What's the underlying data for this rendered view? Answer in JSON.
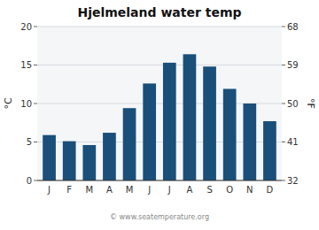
{
  "chart_data": {
    "type": "bar",
    "title": "Hjelmeland water temp",
    "categories": [
      "J",
      "F",
      "M",
      "A",
      "M",
      "J",
      "J",
      "A",
      "S",
      "O",
      "N",
      "D"
    ],
    "values": [
      5.9,
      5.1,
      4.6,
      6.2,
      9.4,
      12.6,
      15.3,
      16.4,
      14.8,
      11.9,
      10.0,
      7.7
    ],
    "color": "#1a4f7a",
    "ylabel": "°C",
    "y2label": "°F",
    "ylim": [
      0,
      20
    ],
    "yticks": [
      0,
      5,
      10,
      15,
      20
    ],
    "y2lim": [
      32,
      68
    ],
    "y2ticks": [
      32,
      41,
      50,
      59,
      68
    ],
    "grid": true,
    "annotation": "© www.seatemperature.org"
  }
}
